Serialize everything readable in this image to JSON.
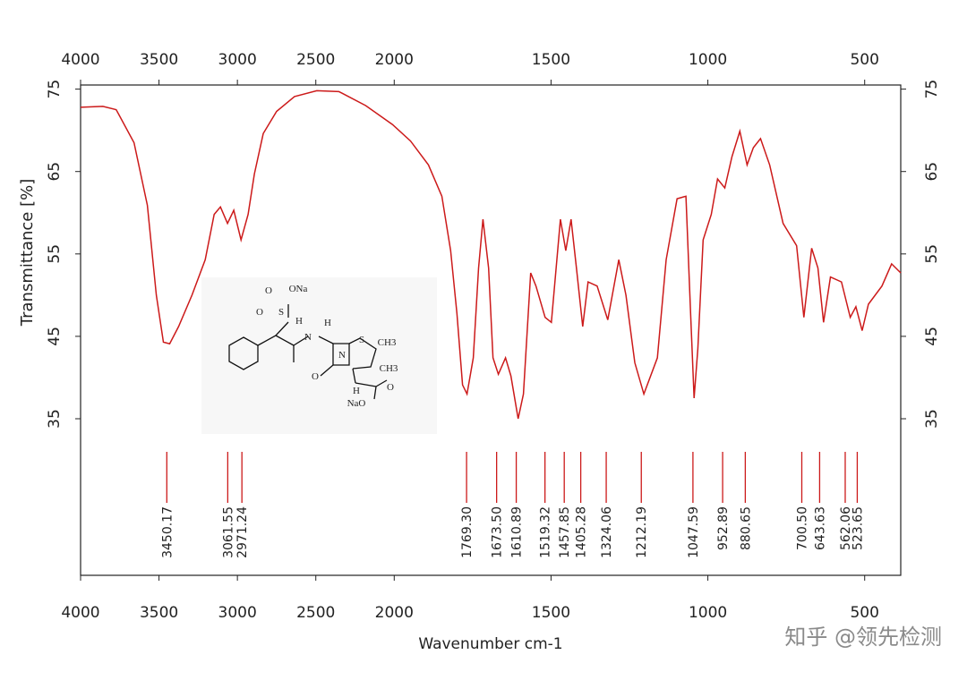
{
  "chart_data": {
    "type": "line",
    "x_label": "Wavenumber cm-1",
    "y_label": "Transmittance [%]",
    "xlim": [
      4000,
      385
    ],
    "x_scale_break": 2000,
    "xticks": [
      4000,
      3500,
      3000,
      2500,
      2000,
      1500,
      1000,
      500
    ],
    "ylim": [
      16,
      75.5
    ],
    "yticks": [
      35,
      45,
      55,
      65,
      75
    ],
    "color": "#cc1a1a",
    "x": [
      4000,
      3858,
      3773,
      3659,
      3574,
      3517,
      3472,
      3432,
      3375,
      3290,
      3205,
      3148,
      3108,
      3063,
      3023,
      2977,
      2932,
      2892,
      2835,
      2750,
      2636,
      2494,
      2352,
      2182,
      2011,
      1948,
      1891,
      1848,
      1820,
      1800,
      1782,
      1768,
      1748,
      1731,
      1717,
      1699,
      1685,
      1668,
      1645,
      1628,
      1605,
      1588,
      1565,
      1548,
      1519,
      1499,
      1470,
      1453,
      1436,
      1419,
      1399,
      1382,
      1353,
      1319,
      1284,
      1261,
      1233,
      1204,
      1161,
      1133,
      1098,
      1070,
      1055,
      1044,
      1032,
      1015,
      989,
      969,
      946,
      923,
      898,
      875,
      855,
      832,
      803,
      760,
      717,
      694,
      669,
      649,
      631,
      609,
      574,
      546,
      528,
      508,
      488,
      445,
      414,
      385
    ],
    "values": [
      72.8,
      72.9,
      72.5,
      68.5,
      60.9,
      50.0,
      44.3,
      44.1,
      46.2,
      50.0,
      54.3,
      59.8,
      60.7,
      58.7,
      60.3,
      56.7,
      59.8,
      64.7,
      69.6,
      72.3,
      74.1,
      74.8,
      74.7,
      73.0,
      70.7,
      68.7,
      65.8,
      62.0,
      55.4,
      47.8,
      39.1,
      38.0,
      42.4,
      53.3,
      59.2,
      53.3,
      42.4,
      40.4,
      42.4,
      40.2,
      35.0,
      38.0,
      52.7,
      51.1,
      47.3,
      46.7,
      59.2,
      55.4,
      59.2,
      53.3,
      46.2,
      51.6,
      51.1,
      47.0,
      54.3,
      50.0,
      41.8,
      38.0,
      42.4,
      54.3,
      61.7,
      62.0,
      47.8,
      37.5,
      43.5,
      56.7,
      59.8,
      64.1,
      63.0,
      66.8,
      69.9,
      65.8,
      67.9,
      69.0,
      65.8,
      58.7,
      56.0,
      47.3,
      55.7,
      53.3,
      46.7,
      52.2,
      51.6,
      47.3,
      48.6,
      45.7,
      48.9,
      51.1,
      53.8,
      52.7
    ],
    "peaks": [
      3450.17,
      3061.55,
      2971.24,
      {
        "value": 1769.3,
        "label": "1769.30"
      },
      {
        "value": 1673.5,
        "label": "1673.50"
      },
      1610.89,
      1519.32,
      1457.85,
      1405.28,
      1324.06,
      1212.19,
      1047.59,
      952.89,
      880.65,
      {
        "value": 700.5,
        "label": "700.50"
      },
      643.63,
      562.06,
      523.65
    ]
  },
  "structure": {
    "labels": [
      "O",
      "S",
      "ONa",
      "O",
      "H",
      "N",
      "H",
      "S",
      "CH3",
      "CH3",
      "N",
      "O",
      "H",
      "O",
      "NaO"
    ]
  },
  "watermark": "知乎 @领先检测"
}
